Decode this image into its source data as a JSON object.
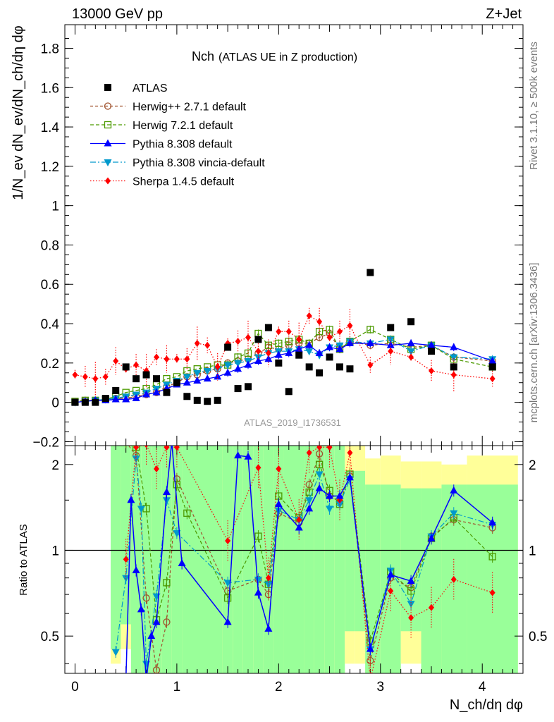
{
  "header": {
    "energy": "13000 GeV pp",
    "process": "Z+Jet"
  },
  "side_labels": {
    "rivet": "Rivet 3.1.10, ≥ 500k events",
    "mcplots": "mcplots.cern.ch [arXiv:1306.3436]"
  },
  "colors": {
    "atlas": "#000000",
    "herwigpp": "#a0522d",
    "herwig7": "#4c9a00",
    "pythia": "#0000ff",
    "vincia": "#0099cc",
    "sherpa": "#ff0000",
    "band_inner": "#99ff99",
    "band_outer": "#ffff99"
  },
  "chart_data": [
    {
      "type": "scatter",
      "title": "Nch",
      "subtitle": "(ATLAS UE in Z production)",
      "xlabel": "N_ch/dη dφ",
      "ylabel": "1/N_ev dN_ev/dN_ch/dη dφ",
      "xlim": [
        -0.1,
        4.4
      ],
      "ylim": [
        -0.22,
        1.92
      ],
      "yticks": [
        "−0.2",
        "0",
        "0.2",
        "0.4",
        "0.6",
        "0.8",
        "1",
        "1.2",
        "1.4",
        "1.6",
        "1.8"
      ],
      "xticks": [
        "0",
        "1",
        "2",
        "3",
        "4"
      ],
      "watermark": "ATLAS_2019_I1736531",
      "legend": [
        {
          "name": "ATLAS",
          "key": "atlas"
        },
        {
          "name": "Herwig++ 2.7.1 default",
          "key": "herwigpp"
        },
        {
          "name": "Herwig 7.2.1 default",
          "key": "herwig7"
        },
        {
          "name": "Pythia 8.308 default",
          "key": "pythia"
        },
        {
          "name": "Pythia 8.308 vincia-default",
          "key": "vincia"
        },
        {
          "name": "Sherpa 1.4.5 default",
          "key": "sherpa"
        }
      ],
      "data": {
        "atlas": {
          "x": [
            0.0,
            0.1,
            0.2,
            0.3,
            0.4,
            0.5,
            0.6,
            0.7,
            0.8,
            0.9,
            1.0,
            1.1,
            1.2,
            1.3,
            1.4,
            1.5,
            1.6,
            1.7,
            1.8,
            1.9,
            2.0,
            2.1,
            2.2,
            2.3,
            2.4,
            2.5,
            2.6,
            2.7,
            2.9,
            3.1,
            3.3,
            3.5,
            3.72,
            4.1
          ],
          "y": [
            0.0,
            0.0,
            0.0,
            0.02,
            0.06,
            0.18,
            0.12,
            0.14,
            0.12,
            0.05,
            0.1,
            0.03,
            0.01,
            0.005,
            0.01,
            0.28,
            0.07,
            0.08,
            0.32,
            0.38,
            0.2,
            0.055,
            0.24,
            0.18,
            0.15,
            0.23,
            0.18,
            0.17,
            0.66,
            0.38,
            0.41,
            0.26,
            0.18,
            0.18
          ]
        },
        "herwigpp": {
          "x": [
            0.0,
            0.1,
            0.2,
            0.3,
            0.4,
            0.5,
            0.6,
            0.7,
            0.8,
            0.9,
            1.0,
            1.1,
            1.2,
            1.3,
            1.4,
            1.5,
            1.6,
            1.7,
            1.8,
            1.9,
            2.0,
            2.1,
            2.2,
            2.3,
            2.4,
            2.5,
            2.6,
            2.7,
            2.9,
            3.1,
            3.3,
            3.5,
            3.72,
            4.1
          ],
          "y": [
            0.005,
            0.01,
            0.01,
            0.015,
            0.02,
            0.02,
            0.03,
            0.04,
            0.05,
            0.08,
            0.1,
            0.13,
            0.14,
            0.16,
            0.17,
            0.2,
            0.21,
            0.22,
            0.25,
            0.28,
            0.27,
            0.29,
            0.3,
            0.3,
            0.33,
            0.35,
            0.27,
            0.31,
            0.29,
            0.3,
            0.28,
            0.29,
            0.23,
            0.21
          ]
        },
        "herwig7": {
          "x": [
            0.0,
            0.1,
            0.2,
            0.3,
            0.4,
            0.5,
            0.6,
            0.7,
            0.8,
            0.9,
            1.0,
            1.1,
            1.2,
            1.3,
            1.4,
            1.5,
            1.6,
            1.7,
            1.8,
            1.9,
            2.0,
            2.1,
            2.2,
            2.3,
            2.4,
            2.5,
            2.6,
            2.7,
            2.9,
            3.1,
            3.3,
            3.5,
            3.72,
            4.1
          ],
          "y": [
            0.005,
            0.01,
            0.01,
            0.015,
            0.03,
            0.05,
            0.06,
            0.07,
            0.09,
            0.12,
            0.13,
            0.16,
            0.17,
            0.18,
            0.19,
            0.19,
            0.23,
            0.25,
            0.35,
            0.29,
            0.3,
            0.31,
            0.32,
            0.3,
            0.36,
            0.37,
            0.27,
            0.31,
            0.37,
            0.32,
            0.27,
            0.29,
            0.22,
            0.18
          ]
        },
        "pythia": {
          "x": [
            0.0,
            0.1,
            0.2,
            0.3,
            0.4,
            0.5,
            0.6,
            0.7,
            0.8,
            0.9,
            1.0,
            1.1,
            1.2,
            1.3,
            1.4,
            1.5,
            1.6,
            1.7,
            1.8,
            1.9,
            2.0,
            2.1,
            2.2,
            2.3,
            2.4,
            2.5,
            2.6,
            2.7,
            2.9,
            3.1,
            3.3,
            3.5,
            3.72,
            4.1
          ],
          "y": [
            0.0,
            0.005,
            0.01,
            0.01,
            0.015,
            0.015,
            0.02,
            0.04,
            0.05,
            0.07,
            0.09,
            0.1,
            0.11,
            0.12,
            0.13,
            0.15,
            0.17,
            0.19,
            0.21,
            0.22,
            0.24,
            0.25,
            0.27,
            0.29,
            0.25,
            0.28,
            0.27,
            0.3,
            0.3,
            0.29,
            0.3,
            0.29,
            0.28,
            0.21
          ]
        },
        "vincia": {
          "x": [
            0.0,
            0.1,
            0.2,
            0.3,
            0.4,
            0.5,
            0.6,
            0.7,
            0.8,
            0.9,
            1.0,
            1.1,
            1.2,
            1.3,
            1.4,
            1.5,
            1.6,
            1.7,
            1.8,
            1.9,
            2.0,
            2.1,
            2.2,
            2.3,
            2.4,
            2.5,
            2.6,
            2.7,
            2.9,
            3.1,
            3.3,
            3.5,
            3.72,
            4.1
          ],
          "y": [
            0.0,
            0.005,
            0.01,
            0.015,
            0.02,
            0.03,
            0.04,
            0.05,
            0.07,
            0.09,
            0.11,
            0.13,
            0.15,
            0.16,
            0.17,
            0.19,
            0.2,
            0.21,
            0.23,
            0.25,
            0.26,
            0.26,
            0.27,
            0.26,
            0.24,
            0.28,
            0.29,
            0.31,
            0.3,
            0.32,
            0.26,
            0.29,
            0.23,
            0.22
          ]
        },
        "sherpa": {
          "x": [
            0.0,
            0.1,
            0.2,
            0.3,
            0.4,
            0.5,
            0.6,
            0.7,
            0.8,
            0.9,
            1.0,
            1.1,
            1.2,
            1.3,
            1.4,
            1.5,
            1.6,
            1.7,
            1.8,
            1.9,
            2.0,
            2.1,
            2.2,
            2.3,
            2.4,
            2.5,
            2.6,
            2.7,
            2.9,
            3.1,
            3.3,
            3.5,
            3.72,
            4.1
          ],
          "y": [
            0.14,
            0.13,
            0.12,
            0.13,
            0.21,
            0.17,
            0.19,
            0.16,
            0.23,
            0.22,
            0.22,
            0.22,
            0.3,
            0.29,
            0.18,
            0.3,
            0.31,
            0.33,
            0.26,
            0.25,
            0.36,
            0.36,
            0.32,
            0.44,
            0.41,
            0.33,
            0.36,
            0.39,
            0.19,
            0.26,
            0.23,
            0.16,
            0.14,
            0.12
          ]
        }
      }
    },
    {
      "type": "line",
      "ylabel": "Ratio to ATLAS",
      "xlim": [
        -0.1,
        4.4
      ],
      "ylim": [
        0.37,
        2.33
      ],
      "yticks": [
        "0.5",
        "1",
        "2"
      ],
      "xticks": [
        "0",
        "1",
        "2",
        "3",
        "4"
      ],
      "reference": 1,
      "note": "Error bands: green inner, yellow outer",
      "data": {
        "herwigpp": {
          "x": [
            0.5,
            0.6,
            0.7,
            0.8,
            0.9,
            1.0,
            1.5,
            1.8,
            1.9,
            2.0,
            2.2,
            2.3,
            2.4,
            2.5,
            2.6,
            2.7,
            2.9,
            3.1,
            3.3,
            3.5,
            3.72,
            4.1
          ],
          "y": [
            2.4,
            2.15,
            0.68,
            0.38,
            0.56,
            1.78,
            0.72,
            0.79,
            0.7,
            1.35,
            1.25,
            1.7,
            2.18,
            1.55,
            1.48,
            1.82,
            0.41,
            0.8,
            0.74,
            1.12,
            1.28,
            1.2
          ]
        },
        "herwig7": {
          "x": [
            0.5,
            0.6,
            0.7,
            0.8,
            0.9,
            1.0,
            1.1,
            1.5,
            1.8,
            1.9,
            2.0,
            2.2,
            2.3,
            2.4,
            2.5,
            2.6,
            2.7,
            2.9,
            3.1,
            3.3,
            3.5,
            3.72,
            4.1
          ],
          "y": [
            2.4,
            2.3,
            1.4,
            0.57,
            0.77,
            1.7,
            1.35,
            0.68,
            1.12,
            0.76,
            1.55,
            1.3,
            1.6,
            2.0,
            1.62,
            1.45,
            1.85,
            0.48,
            0.84,
            0.72,
            1.1,
            1.3,
            0.95
          ]
        },
        "pythia": {
          "x": [
            0.5,
            0.55,
            0.6,
            0.65,
            0.7,
            0.75,
            0.8,
            0.9,
            0.95,
            1.05,
            1.5,
            1.6,
            1.7,
            1.8,
            1.9,
            2.0,
            2.2,
            2.3,
            2.4,
            2.5,
            2.6,
            2.7,
            2.9,
            3.1,
            3.3,
            3.5,
            3.72,
            4.1
          ],
          "y": [
            0.35,
            1.5,
            0.85,
            0.62,
            0.35,
            0.5,
            0.56,
            1.6,
            2.4,
            0.9,
            0.56,
            2.15,
            2.13,
            0.71,
            0.53,
            1.45,
            1.2,
            1.4,
            1.65,
            1.55,
            1.55,
            1.8,
            0.45,
            0.82,
            0.78,
            1.1,
            1.62,
            1.25
          ]
        },
        "vincia": {
          "x": [
            0.4,
            0.5,
            0.6,
            0.65,
            0.7,
            0.8,
            0.9,
            1.0,
            1.5,
            1.8,
            1.9,
            2.0,
            2.2,
            2.3,
            2.4,
            2.5,
            2.6,
            2.7,
            2.9,
            3.1,
            3.3,
            3.5,
            3.72,
            4.1
          ],
          "y": [
            0.44,
            0.8,
            2.1,
            1.4,
            0.4,
            0.69,
            1.5,
            1.15,
            0.77,
            0.79,
            0.76,
            1.38,
            1.28,
            1.5,
            1.85,
            1.4,
            1.45,
            1.78,
            0.45,
            0.85,
            0.65,
            1.12,
            1.35,
            1.23
          ]
        },
        "sherpa": {
          "x": [
            0.5,
            0.6,
            0.7,
            0.8,
            0.9,
            1.0,
            1.5,
            1.8,
            1.9,
            2.0,
            2.2,
            2.3,
            2.4,
            2.5,
            2.6,
            2.7,
            2.9,
            3.1,
            3.3,
            3.5,
            3.72,
            4.1
          ],
          "y": [
            0.93,
            2.3,
            2.35,
            1.93,
            2.3,
            2.3,
            1.08,
            1.95,
            0.8,
            1.93,
            1.28,
            2.2,
            2.3,
            2.3,
            1.5,
            2.2,
            0.35,
            0.72,
            0.58,
            0.63,
            0.79,
            0.71
          ]
        }
      }
    }
  ]
}
